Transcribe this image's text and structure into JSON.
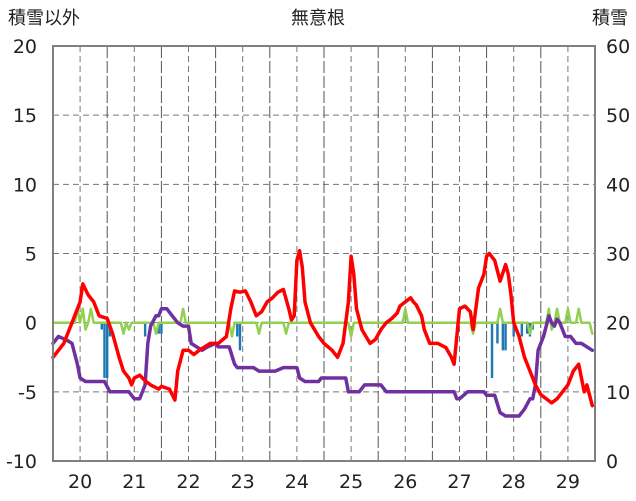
{
  "chart_data": {
    "type": "line",
    "title": "無意根",
    "ylabel_left": "積雪以外",
    "ylabel_right": "積雪",
    "x_ticks": [
      "20",
      "21",
      "22",
      "23",
      "24",
      "25",
      "26",
      "27",
      "28",
      "29"
    ],
    "y_left_range": [
      -10,
      20
    ],
    "y_left_ticks": [
      "20",
      "15",
      "10",
      "5",
      "0",
      "-5",
      "-10"
    ],
    "y_right_range": [
      0,
      60
    ],
    "y_right_ticks": [
      "60",
      "50",
      "40",
      "30",
      "20",
      "10",
      "0"
    ],
    "grid": true,
    "colors": {
      "temperature": "#ff0000",
      "snow_depth": "#7030a0",
      "snow_change": "#92d050",
      "precip_bars": "#1f77b4",
      "grid": "#777777",
      "frame": "#808080"
    },
    "series": [
      {
        "axis": "left",
        "color_key": "temperature",
        "points": [
          [
            19.5,
            -2.5
          ],
          [
            19.7,
            -1.5
          ],
          [
            19.85,
            0
          ],
          [
            20.0,
            1.5
          ],
          [
            20.05,
            2.8
          ],
          [
            20.15,
            2.0
          ],
          [
            20.25,
            1.5
          ],
          [
            20.35,
            0.5
          ],
          [
            20.5,
            0.3
          ],
          [
            20.6,
            -0.8
          ],
          [
            20.72,
            -2.5
          ],
          [
            20.8,
            -3.5
          ],
          [
            20.9,
            -4.0
          ],
          [
            20.95,
            -4.5
          ],
          [
            21.0,
            -4.0
          ],
          [
            21.1,
            -3.8
          ],
          [
            21.2,
            -4.2
          ],
          [
            21.3,
            -4.5
          ],
          [
            21.45,
            -4.8
          ],
          [
            21.5,
            -4.6
          ],
          [
            21.65,
            -4.8
          ],
          [
            21.75,
            -5.6
          ],
          [
            21.8,
            -3.5
          ],
          [
            21.9,
            -2.0
          ],
          [
            22.0,
            -2.0
          ],
          [
            22.1,
            -2.3
          ],
          [
            22.2,
            -2.0
          ],
          [
            22.4,
            -1.5
          ],
          [
            22.55,
            -1.5
          ],
          [
            22.7,
            -1.0
          ],
          [
            22.78,
            1.0
          ],
          [
            22.85,
            2.3
          ],
          [
            22.95,
            2.2
          ],
          [
            23.05,
            2.3
          ],
          [
            23.15,
            1.5
          ],
          [
            23.25,
            0.5
          ],
          [
            23.35,
            0.8
          ],
          [
            23.45,
            1.5
          ],
          [
            23.55,
            1.8
          ],
          [
            23.65,
            2.2
          ],
          [
            23.75,
            2.4
          ],
          [
            23.85,
            1.0
          ],
          [
            23.9,
            0.2
          ],
          [
            23.95,
            0.5
          ],
          [
            24.0,
            4.5
          ],
          [
            24.05,
            5.2
          ],
          [
            24.1,
            4.0
          ],
          [
            24.15,
            1.5
          ],
          [
            24.25,
            0
          ],
          [
            24.4,
            -1.0
          ],
          [
            24.5,
            -1.5
          ],
          [
            24.65,
            -2.0
          ],
          [
            24.75,
            -2.5
          ],
          [
            24.85,
            -1.5
          ],
          [
            24.95,
            1.5
          ],
          [
            25.0,
            4.8
          ],
          [
            25.05,
            3.5
          ],
          [
            25.1,
            1.0
          ],
          [
            25.2,
            -0.5
          ],
          [
            25.35,
            -1.5
          ],
          [
            25.45,
            -1.2
          ],
          [
            25.55,
            -0.5
          ],
          [
            25.65,
            0
          ],
          [
            25.75,
            0.3
          ],
          [
            25.85,
            0.7
          ],
          [
            25.9,
            1.2
          ],
          [
            26.0,
            1.5
          ],
          [
            26.1,
            1.8
          ],
          [
            26.15,
            1.5
          ],
          [
            26.2,
            1.3
          ],
          [
            26.3,
            0.5
          ],
          [
            26.35,
            -0.5
          ],
          [
            26.45,
            -1.5
          ],
          [
            26.6,
            -1.5
          ],
          [
            26.75,
            -1.8
          ],
          [
            26.85,
            -2.5
          ],
          [
            26.9,
            -3.0
          ],
          [
            26.95,
            -1.0
          ],
          [
            27.0,
            1.0
          ],
          [
            27.1,
            1.2
          ],
          [
            27.2,
            0.8
          ],
          [
            27.25,
            -0.5
          ],
          [
            27.35,
            2.5
          ],
          [
            27.45,
            3.5
          ],
          [
            27.5,
            4.8
          ],
          [
            27.55,
            5.0
          ],
          [
            27.65,
            4.5
          ],
          [
            27.75,
            3.0
          ],
          [
            27.85,
            4.2
          ],
          [
            27.9,
            3.5
          ],
          [
            27.95,
            2.0
          ],
          [
            28.0,
            0
          ],
          [
            28.1,
            -1.0
          ],
          [
            28.2,
            -2.5
          ],
          [
            28.3,
            -3.5
          ],
          [
            28.4,
            -4.5
          ],
          [
            28.5,
            -5.2
          ],
          [
            28.6,
            -5.5
          ],
          [
            28.7,
            -5.8
          ],
          [
            28.8,
            -5.5
          ],
          [
            28.9,
            -5.0
          ],
          [
            29.0,
            -4.5
          ],
          [
            29.1,
            -3.5
          ],
          [
            29.2,
            -3.0
          ],
          [
            29.3,
            -5.0
          ],
          [
            29.35,
            -4.5
          ],
          [
            29.45,
            -6.0
          ]
        ]
      },
      {
        "axis": "right",
        "color_key": "snow_depth",
        "points": [
          [
            19.5,
            17
          ],
          [
            19.6,
            18
          ],
          [
            19.75,
            17.5
          ],
          [
            19.85,
            17
          ],
          [
            19.95,
            14
          ],
          [
            20.0,
            12
          ],
          [
            20.1,
            11.5
          ],
          [
            20.2,
            11.5
          ],
          [
            20.35,
            11.5
          ],
          [
            20.45,
            11.5
          ],
          [
            20.55,
            10
          ],
          [
            20.65,
            10
          ],
          [
            20.9,
            10
          ],
          [
            20.95,
            9.5
          ],
          [
            21.0,
            9
          ],
          [
            21.1,
            9
          ],
          [
            21.2,
            11
          ],
          [
            21.25,
            17
          ],
          [
            21.3,
            19.5
          ],
          [
            21.4,
            21
          ],
          [
            21.45,
            21
          ],
          [
            21.5,
            22
          ],
          [
            21.6,
            22
          ],
          [
            21.7,
            21
          ],
          [
            21.8,
            20
          ],
          [
            21.9,
            19.5
          ],
          [
            22.0,
            19.5
          ],
          [
            22.05,
            17
          ],
          [
            22.15,
            16.5
          ],
          [
            22.25,
            16
          ],
          [
            22.35,
            16.5
          ],
          [
            22.5,
            17
          ],
          [
            22.55,
            16.5
          ],
          [
            22.75,
            16.5
          ],
          [
            22.85,
            14
          ],
          [
            22.9,
            13.5
          ],
          [
            23.2,
            13.5
          ],
          [
            23.3,
            13
          ],
          [
            23.5,
            13
          ],
          [
            23.6,
            13
          ],
          [
            23.75,
            13.5
          ],
          [
            24.0,
            13.5
          ],
          [
            24.05,
            12
          ],
          [
            24.15,
            11.5
          ],
          [
            24.4,
            11.5
          ],
          [
            24.45,
            12
          ],
          [
            24.6,
            12
          ],
          [
            24.9,
            12
          ],
          [
            24.95,
            10
          ],
          [
            25.15,
            10
          ],
          [
            25.25,
            11
          ],
          [
            25.35,
            11
          ],
          [
            25.55,
            11
          ],
          [
            25.65,
            10
          ],
          [
            26.9,
            10
          ],
          [
            26.95,
            9
          ],
          [
            27.0,
            9
          ],
          [
            27.15,
            10
          ],
          [
            27.25,
            10
          ],
          [
            27.35,
            10
          ],
          [
            27.45,
            10
          ],
          [
            27.5,
            9.5
          ],
          [
            27.65,
            9.5
          ],
          [
            27.75,
            7
          ],
          [
            27.85,
            6.5
          ],
          [
            28.1,
            6.5
          ],
          [
            28.2,
            7.5
          ],
          [
            28.3,
            9
          ],
          [
            28.35,
            9
          ],
          [
            28.4,
            11
          ],
          [
            28.45,
            16
          ],
          [
            28.55,
            18
          ],
          [
            28.65,
            21
          ],
          [
            28.7,
            20
          ],
          [
            28.75,
            19.5
          ],
          [
            28.8,
            20.5
          ],
          [
            28.85,
            20
          ],
          [
            28.95,
            18
          ],
          [
            29.05,
            18
          ],
          [
            29.15,
            17
          ],
          [
            29.25,
            17
          ],
          [
            29.35,
            16.5
          ],
          [
            29.45,
            16
          ]
        ]
      },
      {
        "axis": "left",
        "color_key": "snow_change",
        "points": [
          [
            19.5,
            0
          ],
          [
            19.9,
            0
          ],
          [
            19.95,
            1.0
          ],
          [
            20.0,
            0
          ],
          [
            20.05,
            1.0
          ],
          [
            20.1,
            -0.5
          ],
          [
            20.15,
            0
          ],
          [
            20.2,
            1.0
          ],
          [
            20.25,
            0
          ],
          [
            20.75,
            0
          ],
          [
            20.8,
            -0.8
          ],
          [
            20.85,
            0
          ],
          [
            20.9,
            -0.5
          ],
          [
            20.95,
            0
          ],
          [
            21.35,
            0
          ],
          [
            21.4,
            -0.8
          ],
          [
            21.45,
            0
          ],
          [
            21.85,
            0
          ],
          [
            21.9,
            1.0
          ],
          [
            21.95,
            0
          ],
          [
            22.75,
            0
          ],
          [
            22.8,
            -1.0
          ],
          [
            22.85,
            0
          ],
          [
            23.25,
            0
          ],
          [
            23.3,
            -0.8
          ],
          [
            23.35,
            0
          ],
          [
            23.75,
            0
          ],
          [
            23.8,
            -0.8
          ],
          [
            23.85,
            0
          ],
          [
            24.95,
            0
          ],
          [
            25.0,
            -1.0
          ],
          [
            25.05,
            0
          ],
          [
            25.95,
            0
          ],
          [
            26.0,
            1.0
          ],
          [
            26.05,
            0
          ],
          [
            27.2,
            0
          ],
          [
            27.25,
            -0.8
          ],
          [
            27.3,
            0
          ],
          [
            27.7,
            0
          ],
          [
            27.75,
            1.0
          ],
          [
            27.8,
            0
          ],
          [
            28.25,
            0
          ],
          [
            28.3,
            -0.8
          ],
          [
            28.35,
            0
          ],
          [
            28.6,
            0
          ],
          [
            28.65,
            1.0
          ],
          [
            28.7,
            -0.5
          ],
          [
            28.75,
            0
          ],
          [
            28.8,
            1.0
          ],
          [
            28.85,
            0
          ],
          [
            28.95,
            0
          ],
          [
            29.0,
            1.0
          ],
          [
            29.05,
            0
          ],
          [
            29.15,
            0
          ],
          [
            29.2,
            1.0
          ],
          [
            29.25,
            0
          ],
          [
            29.4,
            0
          ],
          [
            29.45,
            -0.8
          ]
        ]
      }
    ],
    "bars": {
      "axis": "left",
      "color_key": "precip_bars",
      "points": [
        [
          20.4,
          -0.5
        ],
        [
          20.45,
          -4.0
        ],
        [
          20.5,
          -4.0
        ],
        [
          20.55,
          -1.0
        ],
        [
          21.2,
          -1.0
        ],
        [
          21.3,
          -0.5
        ],
        [
          21.45,
          -0.8
        ],
        [
          21.5,
          -0.8
        ],
        [
          22.9,
          -1.0
        ],
        [
          22.95,
          -2.0
        ],
        [
          27.6,
          -4.0
        ],
        [
          27.7,
          -1.5
        ],
        [
          27.8,
          -2.0
        ],
        [
          27.85,
          -2.0
        ],
        [
          28.0,
          -1.0
        ],
        [
          28.15,
          -1.0
        ],
        [
          28.25,
          -0.8
        ],
        [
          28.3,
          -1.0
        ],
        [
          28.35,
          -0.5
        ]
      ]
    }
  }
}
